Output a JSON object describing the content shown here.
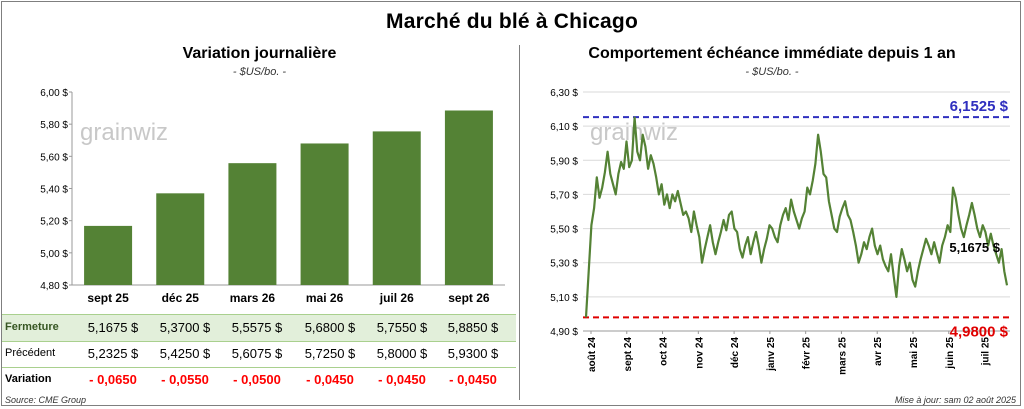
{
  "title": "Marché du blé à Chicago",
  "left": {
    "subtitle": "Variation journalière",
    "unit": "- $US/bo. -",
    "watermark": "grainwiz",
    "table": {
      "rows": [
        {
          "label": "Fermeture",
          "values": [
            "5,1675  $",
            "5,3700  $",
            "5,5575  $",
            "5,6800  $",
            "5,7550  $",
            "5,8850  $"
          ]
        },
        {
          "label": "Précédent",
          "values": [
            "5,2325  $",
            "5,4250  $",
            "5,6075  $",
            "5,7250  $",
            "5,8000  $",
            "5,9300  $"
          ]
        },
        {
          "label": "Variation",
          "values": [
            "- 0,0650",
            "- 0,0550",
            "- 0,0500",
            "- 0,0450",
            "- 0,0450",
            "- 0,0450"
          ]
        }
      ]
    }
  },
  "right": {
    "subtitle": "Comportement  échéance immédiate depuis 1 an",
    "unit": "- $US/bo. -",
    "watermark": "grainwiz",
    "max_label": "6,1525 $",
    "min_label": "4,9800 $",
    "last_label": "5,1675 $"
  },
  "footer": {
    "source": "Source: CME Group",
    "updated": "Mise à jour: sam 02 août 2025"
  },
  "colors": {
    "bar": "#548235",
    "line": "#548235",
    "max": "#2f2fbf",
    "min": "#e00000",
    "grid": "#d9d9d9"
  },
  "chart_data": [
    {
      "type": "bar",
      "title": "Variation journalière",
      "ylabel": "$US/bo.",
      "categories": [
        "sept 25",
        "déc 25",
        "mars 26",
        "mai 26",
        "juil 26",
        "sept 26"
      ],
      "values": [
        5.1675,
        5.37,
        5.5575,
        5.68,
        5.755,
        5.885
      ],
      "ylim": [
        4.8,
        6.0
      ],
      "yticks": [
        "4,80 $",
        "5,00 $",
        "5,20 $",
        "5,40 $",
        "5,60 $",
        "5,80 $",
        "6,00 $"
      ],
      "grid": false
    },
    {
      "type": "line",
      "title": "Comportement  échéance immédiate depuis 1 an",
      "ylabel": "$US/bo.",
      "ylim": [
        4.9,
        6.3
      ],
      "yticks": [
        "4,90 $",
        "5,10 $",
        "5,30 $",
        "5,50 $",
        "5,70 $",
        "5,90 $",
        "6,10 $",
        "6,30 $"
      ],
      "xticks": [
        "août 24",
        "sept 24",
        "oct 24",
        "nov 24",
        "déc 24",
        "janv 25",
        "févr 25",
        "mars 25",
        "avr 25",
        "mai 25",
        "juin 25",
        "juil 25"
      ],
      "grid": true,
      "max_line": 6.1525,
      "min_line": 4.98,
      "last_value": 5.1675,
      "series": [
        {
          "values": [
            4.98,
            5.25,
            5.52,
            5.62,
            5.8,
            5.68,
            5.74,
            5.83,
            5.95,
            5.82,
            5.76,
            5.7,
            5.82,
            5.89,
            5.85,
            6.01,
            5.86,
            5.9,
            6.15,
            5.95,
            5.9,
            6.05,
            5.98,
            5.85,
            5.93,
            5.88,
            5.8,
            5.7,
            5.76,
            5.64,
            5.7,
            5.62,
            5.7,
            5.66,
            5.72,
            5.65,
            5.58,
            5.6,
            5.56,
            5.48,
            5.6,
            5.52,
            5.45,
            5.3,
            5.38,
            5.45,
            5.52,
            5.42,
            5.35,
            5.42,
            5.48,
            5.55,
            5.49,
            5.58,
            5.6,
            5.5,
            5.48,
            5.38,
            5.33,
            5.4,
            5.45,
            5.35,
            5.42,
            5.48,
            5.4,
            5.3,
            5.38,
            5.44,
            5.52,
            5.5,
            5.45,
            5.42,
            5.52,
            5.58,
            5.62,
            5.55,
            5.67,
            5.6,
            5.55,
            5.5,
            5.56,
            5.6,
            5.74,
            5.7,
            5.78,
            5.88,
            6.05,
            5.95,
            5.82,
            5.8,
            5.66,
            5.58,
            5.5,
            5.48,
            5.57,
            5.62,
            5.66,
            5.58,
            5.55,
            5.48,
            5.4,
            5.3,
            5.35,
            5.42,
            5.38,
            5.45,
            5.5,
            5.4,
            5.35,
            5.4,
            5.32,
            5.28,
            5.25,
            5.35,
            5.22,
            5.1,
            5.28,
            5.38,
            5.32,
            5.25,
            5.3,
            5.2,
            5.16,
            5.25,
            5.32,
            5.38,
            5.44,
            5.4,
            5.35,
            5.42,
            5.36,
            5.3,
            5.4,
            5.45,
            5.52,
            5.48,
            5.74,
            5.68,
            5.58,
            5.5,
            5.45,
            5.52,
            5.58,
            5.65,
            5.58,
            5.5,
            5.45,
            5.52,
            5.48,
            5.4,
            5.47,
            5.4,
            5.35,
            5.3,
            5.38,
            5.25,
            5.1675
          ]
        }
      ]
    }
  ]
}
